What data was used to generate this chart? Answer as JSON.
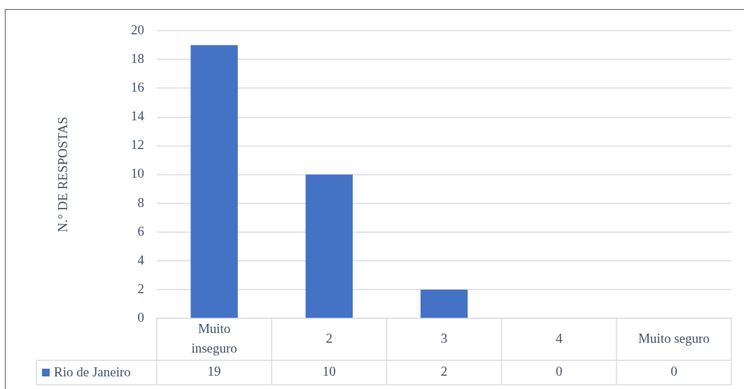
{
  "chart_data": {
    "type": "bar",
    "ylabel": "N.° DE RESPOSTAS",
    "categories": [
      "Muito inseguro",
      "2",
      "3",
      "4",
      "Muito seguro"
    ],
    "series": [
      {
        "name": "Rio de Janeiro",
        "color": "#4472c4",
        "values": [
          19,
          10,
          2,
          0,
          0
        ]
      }
    ],
    "ylim": [
      0,
      20
    ],
    "yticks": [
      0,
      2,
      4,
      6,
      8,
      10,
      12,
      14,
      16,
      18,
      20
    ],
    "grid": "y",
    "legend": "bottom",
    "data_labels": true
  }
}
